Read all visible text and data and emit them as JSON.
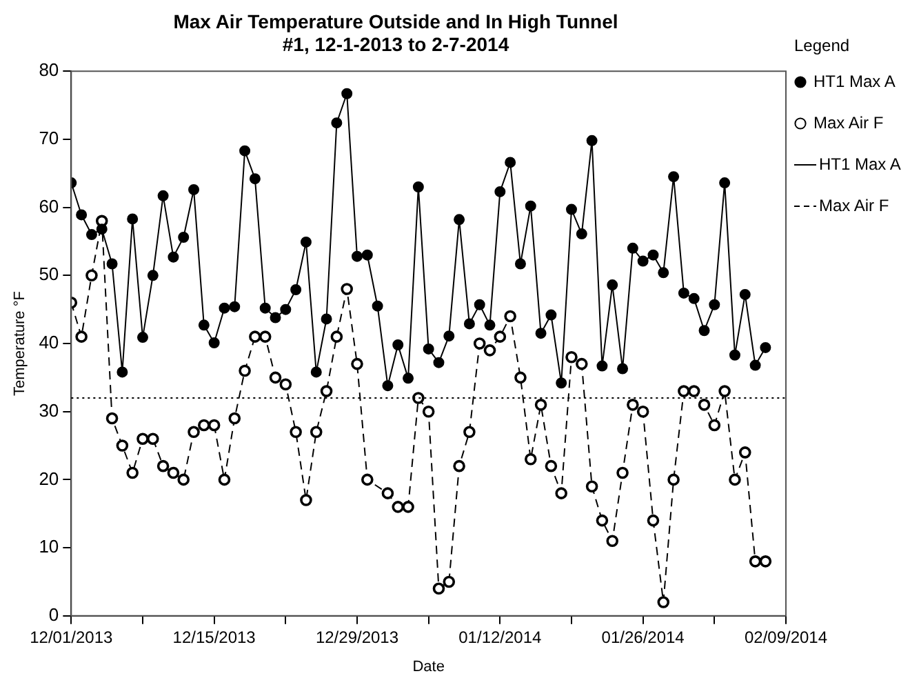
{
  "chart_data": {
    "type": "line",
    "title": "Max Air Temperature Outside and In High Tunnel",
    "subtitle": "#1, 12-1-2013 to 2-7-2014",
    "xlabel": "Date",
    "ylabel": "Temperature °F",
    "legend_title": "Legend",
    "legend": "right",
    "grid": false,
    "marker": "circle",
    "x": [
      "2013-12-01",
      "2013-12-02",
      "2013-12-03",
      "2013-12-04",
      "2013-12-05",
      "2013-12-06",
      "2013-12-07",
      "2013-12-08",
      "2013-12-09",
      "2013-12-10",
      "2013-12-11",
      "2013-12-12",
      "2013-12-13",
      "2013-12-14",
      "2013-12-15",
      "2013-12-16",
      "2013-12-17",
      "2013-12-18",
      "2013-12-19",
      "2013-12-20",
      "2013-12-21",
      "2013-12-22",
      "2013-12-23",
      "2013-12-24",
      "2013-12-25",
      "2013-12-26",
      "2013-12-27",
      "2013-12-28",
      "2013-12-29",
      "2013-12-30",
      "2013-12-31",
      "2014-01-01",
      "2014-01-02",
      "2014-01-03",
      "2014-01-04",
      "2014-01-05",
      "2014-01-06",
      "2014-01-07",
      "2014-01-08",
      "2014-01-09",
      "2014-01-10",
      "2014-01-11",
      "2014-01-12",
      "2014-01-13",
      "2014-01-14",
      "2014-01-15",
      "2014-01-16",
      "2014-01-17",
      "2014-01-18",
      "2014-01-19",
      "2014-01-20",
      "2014-01-21",
      "2014-01-22",
      "2014-01-23",
      "2014-01-24",
      "2014-01-25",
      "2014-01-26",
      "2014-01-27",
      "2014-01-28",
      "2014-01-29",
      "2014-01-30",
      "2014-01-31",
      "2014-02-01",
      "2014-02-02",
      "2014-02-03",
      "2014-02-04",
      "2014-02-05",
      "2014-02-06",
      "2014-02-07"
    ],
    "series": [
      {
        "name": "HT1 Max A",
        "color": "#000000",
        "line_style": "solid",
        "values": [
          63.6,
          58.9,
          56,
          56.8,
          51.7,
          35.8,
          58.3,
          40.9,
          50,
          61.7,
          52.7,
          55.6,
          62.6,
          42.7,
          40.1,
          45.2,
          45.4,
          68.3,
          64.2,
          45.2,
          43.8,
          45,
          47.9,
          54.9,
          35.8,
          43.6,
          72.4,
          76.7,
          52.8,
          53,
          45.5,
          33.8,
          39.8,
          34.9,
          63,
          39.2,
          37.2,
          41.1,
          58.2,
          42.9,
          45.7,
          42.7,
          62.3,
          66.6,
          51.7,
          60.2,
          41.5,
          44.2,
          34.2,
          59.7,
          56.1,
          69.8,
          36.7,
          48.6,
          36.3,
          54,
          52.1,
          53,
          50.4,
          64.5,
          47.4,
          46.6,
          41.9,
          45.7,
          63.6,
          38.3,
          47.2,
          36.8,
          39.4
        ]
      },
      {
        "name": "Max Air F",
        "color": "#000000",
        "line_style": "dashed",
        "values": [
          46,
          41,
          50,
          58,
          29,
          25,
          21,
          26,
          26,
          22,
          21,
          20,
          27,
          28,
          28,
          20,
          29,
          36,
          41,
          41,
          35,
          34,
          27,
          17,
          27,
          33,
          41,
          48,
          37,
          20,
          null,
          18,
          16,
          16,
          32,
          30,
          4,
          5,
          22,
          27,
          40,
          39,
          41,
          44,
          35,
          23,
          31,
          22,
          18,
          38,
          37,
          19,
          14,
          11,
          21,
          31,
          30,
          14,
          2,
          20,
          33,
          33,
          31,
          28,
          33,
          20,
          24,
          8,
          8
        ]
      }
    ],
    "xlim": [
      "2013-12-01",
      "2014-02-09"
    ],
    "xticks": [
      {
        "value": "2013-12-01",
        "label": "12/01/2013"
      },
      {
        "value": "2013-12-08",
        "label": null
      },
      {
        "value": "2013-12-15",
        "label": "12/15/2013"
      },
      {
        "value": "2013-12-22",
        "label": null
      },
      {
        "value": "2013-12-29",
        "label": "12/29/2013"
      },
      {
        "value": "2014-01-05",
        "label": null
      },
      {
        "value": "2014-01-12",
        "label": "01/12/2014"
      },
      {
        "value": "2014-01-19",
        "label": null
      },
      {
        "value": "2014-01-26",
        "label": "01/26/2014"
      },
      {
        "value": "2014-02-02",
        "label": null
      },
      {
        "value": "2014-02-09",
        "label": "02/09/2014"
      }
    ],
    "ylim": [
      0,
      80
    ],
    "yticks": [
      0,
      10,
      20,
      30,
      40,
      50,
      60,
      70,
      80
    ],
    "ref_lines": [
      {
        "axis": "y",
        "value": 32,
        "line_style": "dotted",
        "color": "#000000"
      }
    ]
  }
}
